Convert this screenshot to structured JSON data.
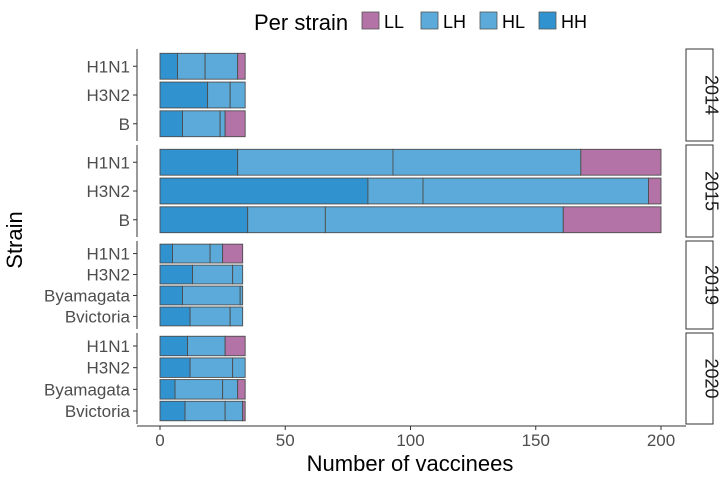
{
  "chart_data": {
    "type": "bar",
    "orientation": "horizontal",
    "stacked": true,
    "xlabel": "Number of vaccinees",
    "ylabel": "Strain",
    "xlim": [
      0,
      200
    ],
    "xticks": [
      0,
      50,
      100,
      150,
      200
    ],
    "grid": false,
    "legend": {
      "title": "Per strain",
      "placement": "top",
      "entries": [
        {
          "name": "LL",
          "color": "#b373a6"
        },
        {
          "name": "LH",
          "color": "#5baad9"
        },
        {
          "name": "HL",
          "color": "#5baad9"
        },
        {
          "name": "HH",
          "color": "#3192d0"
        }
      ]
    },
    "stack_order": [
      "HH",
      "HL",
      "LH",
      "LL"
    ],
    "panels": [
      {
        "label": "2014",
        "strains": [
          {
            "name": "H1N1",
            "values": {
              "HH": 7,
              "HL": 11,
              "LH": 13,
              "LL": 3
            }
          },
          {
            "name": "H3N2",
            "values": {
              "HH": 19,
              "HL": 9,
              "LH": 6,
              "LL": 0
            }
          },
          {
            "name": "B",
            "values": {
              "HH": 9,
              "HL": 15,
              "LH": 2,
              "LL": 8
            }
          }
        ]
      },
      {
        "label": "2015",
        "strains": [
          {
            "name": "H1N1",
            "values": {
              "HH": 31,
              "HL": 62,
              "LH": 75,
              "LL": 32
            }
          },
          {
            "name": "H3N2",
            "values": {
              "HH": 83,
              "HL": 22,
              "LH": 90,
              "LL": 5
            }
          },
          {
            "name": "B",
            "values": {
              "HH": 35,
              "HL": 31,
              "LH": 95,
              "LL": 39
            }
          }
        ]
      },
      {
        "label": "2019",
        "strains": [
          {
            "name": "H1N1",
            "values": {
              "HH": 5,
              "HL": 15,
              "LH": 5,
              "LL": 8
            }
          },
          {
            "name": "H3N2",
            "values": {
              "HH": 13,
              "HL": 16,
              "LH": 4,
              "LL": 0
            }
          },
          {
            "name": "Byamagata",
            "values": {
              "HH": 9,
              "HL": 23,
              "LH": 1,
              "LL": 0
            }
          },
          {
            "name": "Bvictoria",
            "values": {
              "HH": 12,
              "HL": 16,
              "LH": 5,
              "LL": 0
            }
          }
        ]
      },
      {
        "label": "2020",
        "strains": [
          {
            "name": "H1N1",
            "values": {
              "HH": 11,
              "HL": 15,
              "LH": 0,
              "LL": 8
            }
          },
          {
            "name": "H3N2",
            "values": {
              "HH": 12,
              "HL": 17,
              "LH": 5,
              "LL": 0
            }
          },
          {
            "name": "Byamagata",
            "values": {
              "HH": 6,
              "HL": 19,
              "LH": 6,
              "LL": 3
            }
          },
          {
            "name": "Bvictoria",
            "values": {
              "HH": 10,
              "HL": 16,
              "LH": 7,
              "LL": 1
            }
          }
        ]
      }
    ]
  }
}
